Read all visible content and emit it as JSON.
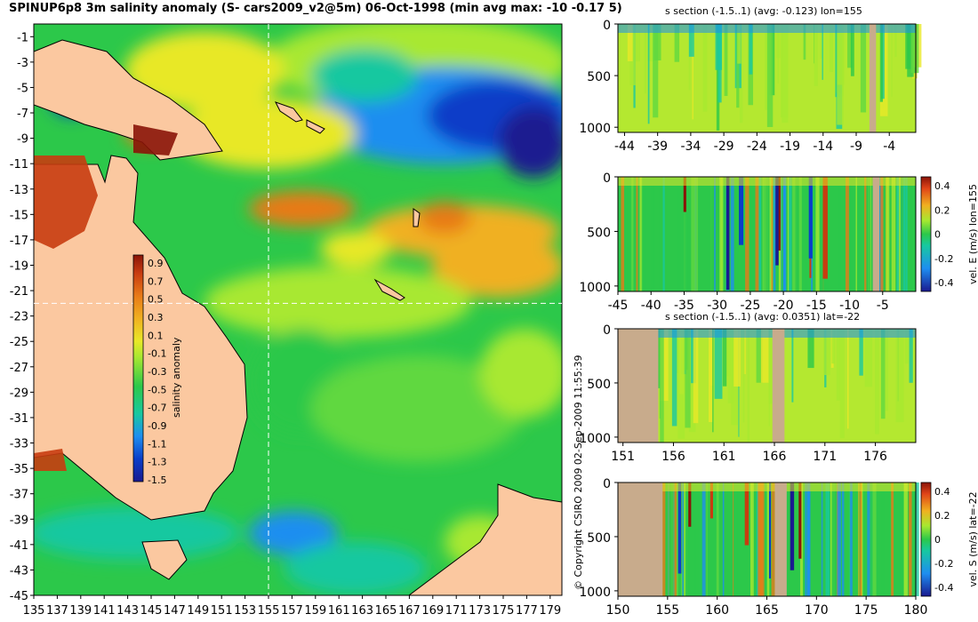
{
  "map": {
    "title": "SPINUP6p8 3m salinity anomaly (S- cars2009_v2@5m) 06-Oct-1998 (min avg max: -10 -0.17 5)",
    "lat_ticks": [
      "-1",
      "-3",
      "-5",
      "-7",
      "-9",
      "-11",
      "-13",
      "-15",
      "-17",
      "-19",
      "-21",
      "-23",
      "-25",
      "-27",
      "-29",
      "-31",
      "-33",
      "-35",
      "-37",
      "-39",
      "-41",
      "-43",
      "-45"
    ],
    "lon_ticks": [
      "135",
      "137",
      "139",
      "141",
      "143",
      "145",
      "147",
      "149",
      "151",
      "153",
      "155",
      "157",
      "159",
      "161",
      "163",
      "165",
      "167",
      "169",
      "171",
      "173",
      "175",
      "177",
      "179"
    ],
    "colorbar": {
      "label": "salinity anomaly",
      "ticks": [
        "0.9",
        "0.7",
        "0.5",
        "0.3",
        "0.1",
        "-0.1",
        "-0.3",
        "-0.5",
        "-0.7",
        "-0.9",
        "-1.1",
        "-1.3",
        "-1.5"
      ]
    },
    "section_line_lon": 155,
    "section_line_lat": -22
  },
  "copyright": "© Copyright CSIRO 2009   02-Sep-2009 11:55:39",
  "sections": [
    {
      "title": "s section (-1.5..1) (avg: -0.123) lon=155",
      "depth_ticks": [
        "0",
        "500",
        "1000"
      ],
      "x_ticks": [
        "-44",
        "-39",
        "-34",
        "-29",
        "-24",
        "-19",
        "-14",
        "-9",
        "-4"
      ],
      "colorbar": null
    },
    {
      "title": "",
      "depth_ticks": [
        "0",
        "500",
        "1000"
      ],
      "x_ticks": [
        "-45",
        "-40",
        "-35",
        "-30",
        "-25",
        "-20",
        "-15",
        "-10",
        "-5"
      ],
      "colorbar": {
        "label": "vel. E (m/s) lon=155",
        "ticks": [
          "0.4",
          "0.2",
          "0",
          "-0.2",
          "-0.4"
        ]
      }
    },
    {
      "title": "s section (-1.5..1) (avg: 0.0351) lat=-22",
      "depth_ticks": [
        "0",
        "500",
        "1000"
      ],
      "x_ticks": [
        "151",
        "156",
        "161",
        "166",
        "171",
        "176"
      ],
      "colorbar": null
    },
    {
      "title": "",
      "depth_ticks": [
        "0",
        "500",
        "1000"
      ],
      "x_ticks": [
        "150",
        "155",
        "160",
        "165",
        "170",
        "175",
        "180"
      ],
      "colorbar": {
        "label": "vel. S (m/s) lat=-22",
        "ticks": [
          "0.4",
          "0.2",
          "0",
          "-0.2",
          "-0.4"
        ]
      }
    }
  ],
  "chart_data": [
    {
      "type": "heatmap",
      "title": "SPINUP6p8 3m salinity anomaly (S- cars2009_v2@5m) 06-Oct-1998 (min avg max: -10 -0.17 5)",
      "xlabel": "",
      "ylabel": "",
      "xlim": [
        135,
        180
      ],
      "ylim": [
        -45,
        0
      ],
      "colorbar_label": "salinity anomaly",
      "zlim": [
        -1.5,
        1.0
      ],
      "stats": {
        "min": -10,
        "avg": -0.17,
        "max": 5
      }
    },
    {
      "type": "heatmap",
      "title": "s section (-1.5..1) (avg: -0.123) lon=155",
      "xlim": [
        -45,
        0
      ],
      "ylim": [
        1050,
        0
      ],
      "zlim": [
        -1.5,
        1.0
      ],
      "avg": -0.123
    },
    {
      "type": "heatmap",
      "title": "",
      "xlim": [
        -45,
        0
      ],
      "ylim": [
        1050,
        0
      ],
      "colorbar_label": "vel. E (m/s) lon=155",
      "zlim": [
        -0.4,
        0.4
      ]
    },
    {
      "type": "heatmap",
      "title": "s section (-1.5..1) (avg: 0.0351) lat=-22",
      "xlim": [
        150,
        180
      ],
      "ylim": [
        1050,
        0
      ],
      "zlim": [
        -1.5,
        1.0
      ],
      "avg": 0.0351
    },
    {
      "type": "heatmap",
      "title": "",
      "xlim": [
        150,
        180
      ],
      "ylim": [
        1050,
        0
      ],
      "colorbar_label": "vel. S (m/s) lat=-22",
      "zlim": [
        -0.4,
        0.4
      ]
    }
  ],
  "colors": {
    "land": "#fbc8a0",
    "section_land": "#c8ab8c",
    "scale": [
      "#1a1a90",
      "#0a3ec8",
      "#1e8ef0",
      "#18c8a0",
      "#2cc84a",
      "#60d840",
      "#a8e830",
      "#e8e828",
      "#f0b020",
      "#e87a18",
      "#c83c10",
      "#8a1408"
    ]
  }
}
